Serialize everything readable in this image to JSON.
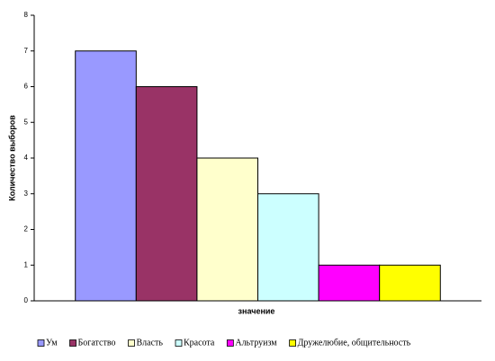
{
  "chart_data": {
    "type": "bar",
    "y_label": "Количество выборов",
    "x_label": "значение",
    "categories": [
      null
    ],
    "series": [
      {
        "name": "Ум",
        "color": "#9999ff",
        "values": [
          7
        ]
      },
      {
        "name": "Богатство",
        "color": "#993366",
        "values": [
          6
        ]
      },
      {
        "name": "Власть",
        "color": "#ffffcc",
        "values": [
          4
        ]
      },
      {
        "name": "Красота",
        "color": "#ccffff",
        "values": [
          3
        ]
      },
      {
        "name": "Альтруизм",
        "color": "#ff00ff",
        "values": [
          1
        ]
      },
      {
        "name": "Дружелюбие, общительность",
        "color": "#ffff00",
        "values": [
          1
        ]
      }
    ],
    "ylim": [
      0,
      8
    ],
    "yticks": [
      0,
      1,
      2,
      3,
      4,
      5,
      6,
      7,
      8
    ],
    "grid": false,
    "legend": "bottom"
  }
}
